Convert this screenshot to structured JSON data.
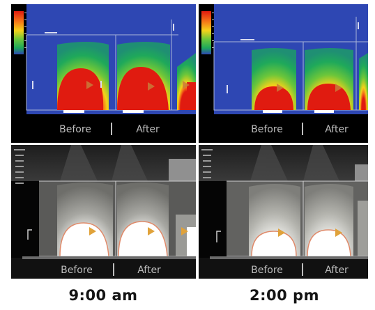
{
  "panels": {
    "color_am": {
      "before_label": "Before",
      "after_label": "After"
    },
    "color_pm": {
      "before_label": "Before",
      "after_label": "After"
    },
    "gray_am": {
      "before_label": "Before",
      "after_label": "After"
    },
    "gray_pm": {
      "before_label": "Before",
      "after_label": "After"
    }
  },
  "times": {
    "left": "9:00 am",
    "right": "2:00 pm"
  },
  "colors": {
    "background_blue": "#2e47b3",
    "hot": "#e01b10",
    "warm": "#f4d21a",
    "mid": "#3cbf3c",
    "black_band": "#000000",
    "gray_bg": "#2a2a2a",
    "highlight": "#ffffff",
    "rim": "#e08a6a"
  }
}
